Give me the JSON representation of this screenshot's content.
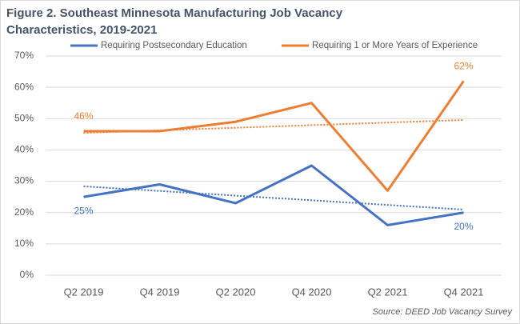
{
  "chart_data": {
    "type": "line",
    "title": [
      "Figure 2. Southeast Minnesota Manufacturing Job Vacancy",
      "Characteristics, 2019-2021"
    ],
    "categories": [
      "Q2 2019",
      "Q4 2019",
      "Q2 2020",
      "Q4 2020",
      "Q2 2021",
      "Q4 2021"
    ],
    "series": [
      {
        "name": "Requiring Postsecondary Education",
        "color": "#4472c4",
        "values": [
          25,
          29,
          23,
          35,
          16,
          20
        ],
        "value_labels": [
          "25%",
          null,
          null,
          null,
          null,
          "20%"
        ]
      },
      {
        "name": "Requiring 1 or More Years of Experience",
        "color": "#ed7d31",
        "values": [
          46,
          46,
          49,
          55,
          27,
          62
        ],
        "value_labels": [
          "46%",
          null,
          null,
          null,
          null,
          "62%"
        ]
      }
    ],
    "ylim": [
      0,
      70
    ],
    "yticks": [
      {
        "value": 0,
        "label": "0%"
      },
      {
        "value": 10,
        "label": "10%"
      },
      {
        "value": 20,
        "label": "20%"
      },
      {
        "value": 30,
        "label": "30%"
      },
      {
        "value": 40,
        "label": "40%"
      },
      {
        "value": 50,
        "label": "50%"
      },
      {
        "value": 60,
        "label": "60%"
      },
      {
        "value": 70,
        "label": "70%"
      }
    ],
    "grid": true,
    "trendline": true,
    "legend": "top",
    "source": "Source: DEED Job Vacancy Survey"
  }
}
